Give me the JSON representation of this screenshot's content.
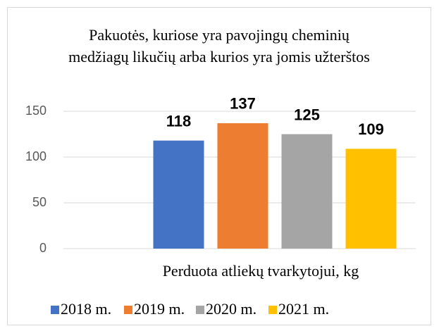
{
  "chart_data": {
    "type": "bar",
    "title": "Pakuotės, kuriose yra pavojingų cheminių medžiagų likučių arba kurios yra jomis užterštos",
    "categories": [
      "Perduota atliekų tvarkytojui, kg"
    ],
    "series": [
      {
        "name": "2018 m.",
        "color": "#4472c4",
        "values": [
          118
        ]
      },
      {
        "name": "2019 m.",
        "color": "#ed7d31",
        "values": [
          137
        ]
      },
      {
        "name": "2020 m.",
        "color": "#a5a5a5",
        "values": [
          125
        ]
      },
      {
        "name": "2021 m.",
        "color": "#ffc000",
        "values": [
          109
        ]
      }
    ],
    "ylim": [
      0,
      150
    ],
    "yticks": [
      0,
      50,
      100,
      150
    ],
    "grid": true,
    "legend": "bottom"
  }
}
